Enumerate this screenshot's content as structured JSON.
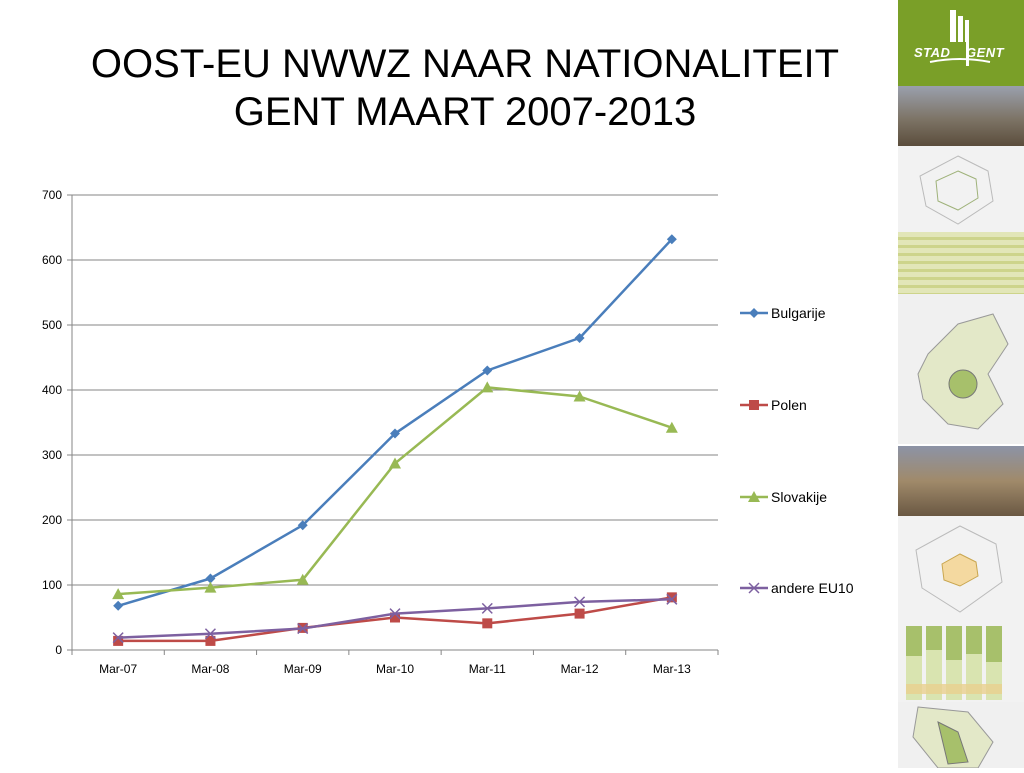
{
  "title": {
    "line1": "OOST-EU NWWZ NAAR NATIONALITEIT",
    "line2": "GENT MAART 2007-2013"
  },
  "logo": {
    "left": "STAD",
    "right": "GENT",
    "color": "#7a9f28"
  },
  "chart_data": {
    "type": "line",
    "categories": [
      "Mar-07",
      "Mar-08",
      "Mar-09",
      "Mar-10",
      "Mar-11",
      "Mar-12",
      "Mar-13"
    ],
    "ylim": [
      0,
      700
    ],
    "yticks": [
      0,
      100,
      200,
      300,
      400,
      500,
      600,
      700
    ],
    "grid": true,
    "legend": "right",
    "series": [
      {
        "name": "Bulgarije",
        "color": "#4a7ebb",
        "marker": "diamond",
        "values": [
          68,
          110,
          192,
          333,
          430,
          480,
          632
        ]
      },
      {
        "name": "Polen",
        "color": "#be4b48",
        "marker": "square",
        "values": [
          14,
          14,
          34,
          50,
          41,
          56,
          81
        ]
      },
      {
        "name": "Slovakije",
        "color": "#98b954",
        "marker": "triangle",
        "values": [
          86,
          96,
          108,
          287,
          404,
          390,
          342
        ]
      },
      {
        "name": "andere EU10",
        "color": "#7d60a0",
        "marker": "x",
        "values": [
          19,
          25,
          33,
          56,
          64,
          74,
          78
        ]
      }
    ]
  }
}
